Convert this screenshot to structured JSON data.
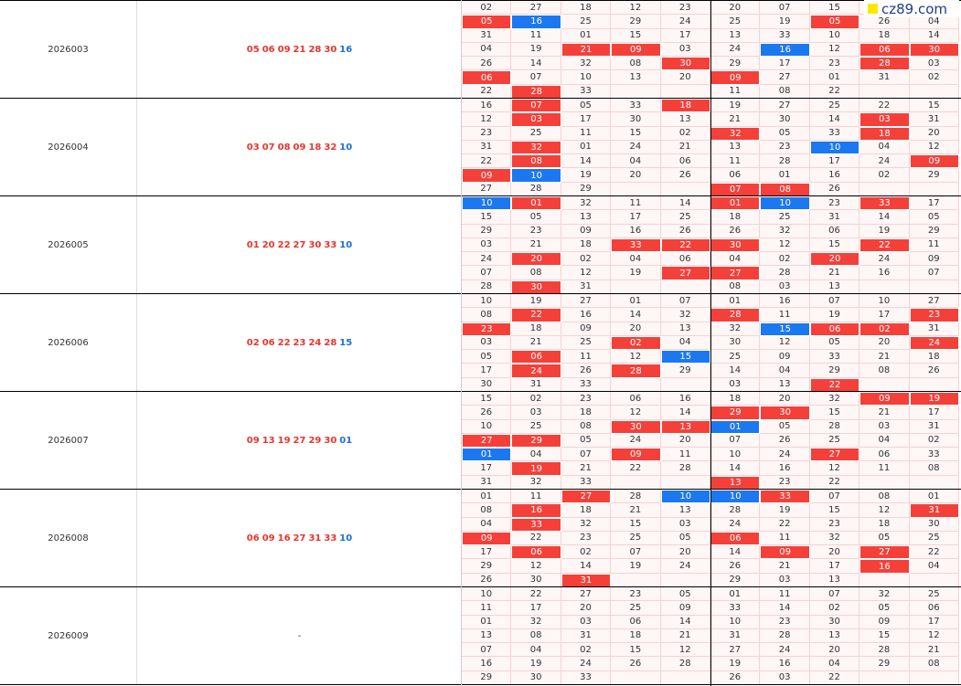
{
  "logo": "cz89.com",
  "periods": [
    {
      "issue": "2026003",
      "red": [
        "05",
        "06",
        "09",
        "21",
        "28",
        "30"
      ],
      "blue": "16",
      "grid": [
        [
          "02",
          "27",
          "18",
          "12",
          "23",
          "20",
          "07",
          "15",
          null,
          null
        ],
        [
          "05",
          "16",
          "25",
          "29",
          "24",
          "25",
          "19",
          "05",
          "26",
          "04"
        ],
        [
          "31",
          "11",
          "01",
          "15",
          "17",
          "13",
          "33",
          "10",
          "18",
          "14"
        ],
        [
          "04",
          "19",
          "21",
          "09",
          "03",
          "24",
          "16",
          "12",
          "06",
          "30"
        ],
        [
          "26",
          "14",
          "32",
          "08",
          "30",
          "29",
          "17",
          "23",
          "28",
          "03"
        ],
        [
          "06",
          "07",
          "10",
          "13",
          "20",
          "09",
          "27",
          "01",
          "31",
          "02"
        ],
        [
          "22",
          "28",
          "33",
          null,
          null,
          "11",
          "08",
          "22",
          null,
          null
        ]
      ]
    },
    {
      "issue": "2026004",
      "red": [
        "03",
        "07",
        "08",
        "09",
        "18",
        "32"
      ],
      "blue": "10",
      "grid": [
        [
          "16",
          "07",
          "05",
          "33",
          "18",
          "19",
          "27",
          "25",
          "22",
          "15"
        ],
        [
          "12",
          "03",
          "17",
          "30",
          "13",
          "21",
          "30",
          "14",
          "03",
          "31"
        ],
        [
          "23",
          "25",
          "11",
          "15",
          "02",
          "32",
          "05",
          "33",
          "18",
          "20"
        ],
        [
          "31",
          "32",
          "01",
          "24",
          "21",
          "13",
          "23",
          "10",
          "04",
          "12"
        ],
        [
          "22",
          "08",
          "14",
          "04",
          "06",
          "11",
          "28",
          "17",
          "24",
          "09"
        ],
        [
          "09",
          "10",
          "19",
          "20",
          "26",
          "06",
          "01",
          "16",
          "02",
          "29"
        ],
        [
          "27",
          "28",
          "29",
          null,
          null,
          "07",
          "08",
          "26",
          null,
          null
        ]
      ]
    },
    {
      "issue": "2026005",
      "red": [
        "01",
        "20",
        "22",
        "27",
        "30",
        "33"
      ],
      "blue": "10",
      "grid": [
        [
          "10",
          "01",
          "32",
          "11",
          "14",
          "01",
          "10",
          "23",
          "33",
          "17"
        ],
        [
          "15",
          "05",
          "13",
          "17",
          "25",
          "18",
          "25",
          "31",
          "14",
          "05"
        ],
        [
          "29",
          "23",
          "09",
          "16",
          "26",
          "26",
          "32",
          "06",
          "19",
          "29"
        ],
        [
          "03",
          "21",
          "18",
          "33",
          "22",
          "30",
          "12",
          "15",
          "22",
          "11"
        ],
        [
          "24",
          "20",
          "02",
          "04",
          "06",
          "04",
          "02",
          "20",
          "24",
          "09"
        ],
        [
          "07",
          "08",
          "12",
          "19",
          "27",
          "27",
          "28",
          "21",
          "16",
          "07"
        ],
        [
          "28",
          "30",
          "31",
          null,
          null,
          "08",
          "03",
          "13",
          null,
          null
        ]
      ]
    },
    {
      "issue": "2026006",
      "red": [
        "02",
        "06",
        "22",
        "23",
        "24",
        "28"
      ],
      "blue": "15",
      "grid": [
        [
          "10",
          "19",
          "27",
          "01",
          "07",
          "01",
          "16",
          "07",
          "10",
          "27"
        ],
        [
          "08",
          "22",
          "16",
          "14",
          "32",
          "28",
          "11",
          "19",
          "17",
          "23"
        ],
        [
          "23",
          "18",
          "09",
          "20",
          "13",
          "32",
          "15",
          "06",
          "02",
          "31"
        ],
        [
          "03",
          "21",
          "25",
          "02",
          "04",
          "30",
          "12",
          "05",
          "20",
          "24"
        ],
        [
          "05",
          "06",
          "11",
          "12",
          "15",
          "25",
          "09",
          "33",
          "21",
          "18"
        ],
        [
          "17",
          "24",
          "26",
          "28",
          "29",
          "14",
          "04",
          "29",
          "08",
          "26"
        ],
        [
          "30",
          "31",
          "33",
          null,
          null,
          "03",
          "13",
          "22",
          null,
          null
        ]
      ]
    },
    {
      "issue": "2026007",
      "red": [
        "09",
        "13",
        "19",
        "27",
        "29",
        "30"
      ],
      "blue": "01",
      "grid": [
        [
          "15",
          "02",
          "23",
          "06",
          "16",
          "18",
          "20",
          "32",
          "09",
          "19"
        ],
        [
          "26",
          "03",
          "18",
          "12",
          "14",
          "29",
          "30",
          "15",
          "21",
          "17"
        ],
        [
          "10",
          "25",
          "08",
          "30",
          "13",
          "01",
          "05",
          "28",
          "03",
          "31"
        ],
        [
          "27",
          "29",
          "05",
          "24",
          "20",
          "07",
          "26",
          "25",
          "04",
          "02"
        ],
        [
          "01",
          "04",
          "07",
          "09",
          "11",
          "10",
          "24",
          "27",
          "06",
          "33"
        ],
        [
          "17",
          "19",
          "21",
          "22",
          "28",
          "14",
          "16",
          "12",
          "11",
          "08"
        ],
        [
          "31",
          "32",
          "33",
          null,
          null,
          "13",
          "23",
          "22",
          null,
          null
        ]
      ]
    },
    {
      "issue": "2026008",
      "red": [
        "06",
        "09",
        "16",
        "27",
        "31",
        "33"
      ],
      "blue": "10",
      "grid": [
        [
          "01",
          "11",
          "27",
          "28",
          "10",
          "10",
          "33",
          "07",
          "08",
          "01"
        ],
        [
          "08",
          "16",
          "18",
          "21",
          "13",
          "28",
          "19",
          "15",
          "12",
          "31"
        ],
        [
          "04",
          "33",
          "32",
          "15",
          "03",
          "24",
          "22",
          "23",
          "18",
          "30"
        ],
        [
          "09",
          "22",
          "23",
          "25",
          "05",
          "06",
          "11",
          "32",
          "05",
          "25"
        ],
        [
          "17",
          "06",
          "02",
          "07",
          "20",
          "14",
          "09",
          "20",
          "27",
          "22"
        ],
        [
          "29",
          "12",
          "14",
          "19",
          "24",
          "26",
          "21",
          "17",
          "16",
          "04"
        ],
        [
          "26",
          "30",
          "31",
          null,
          null,
          "29",
          "03",
          "13",
          null,
          null
        ]
      ]
    },
    {
      "issue": "2026009",
      "draw": "-",
      "grid": [
        [
          "10",
          "22",
          "27",
          "23",
          "05",
          "01",
          "11",
          "07",
          "32",
          "25"
        ],
        [
          "11",
          "17",
          "20",
          "25",
          "09",
          "33",
          "14",
          "02",
          "05",
          "06"
        ],
        [
          "01",
          "32",
          "03",
          "06",
          "14",
          "10",
          "23",
          "30",
          "09",
          "17"
        ],
        [
          "13",
          "08",
          "31",
          "18",
          "21",
          "31",
          "28",
          "13",
          "15",
          "12"
        ],
        [
          "07",
          "04",
          "02",
          "15",
          "12",
          "27",
          "24",
          "20",
          "28",
          "21"
        ],
        [
          "16",
          "19",
          "24",
          "26",
          "28",
          "19",
          "16",
          "04",
          "29",
          "08"
        ],
        [
          "29",
          "30",
          "33",
          null,
          null,
          "26",
          "03",
          "22",
          null,
          null
        ]
      ]
    }
  ]
}
